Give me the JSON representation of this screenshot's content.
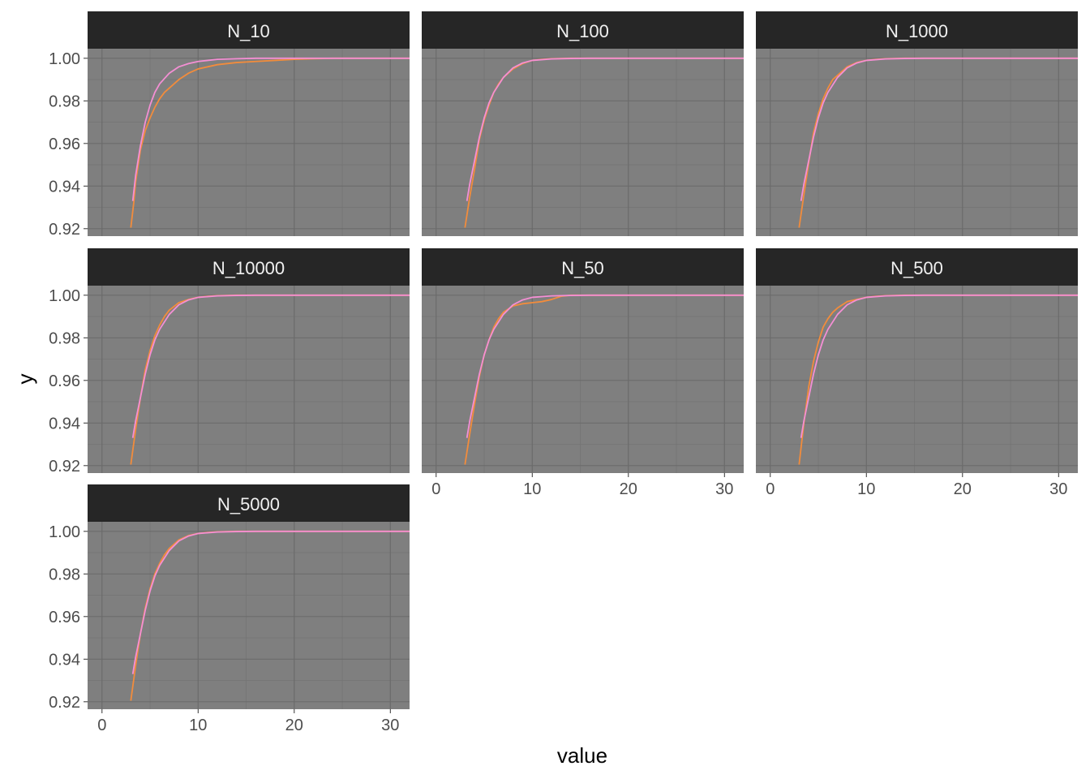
{
  "chart_data": {
    "type": "line",
    "xlabel": "value",
    "ylabel": "y",
    "xlim": [
      -1.5,
      32
    ],
    "ylim": [
      0.9165,
      1.0045
    ],
    "x_ticks": [
      0,
      10,
      20,
      30
    ],
    "y_ticks": [
      0.92,
      0.94,
      0.96,
      0.98,
      1.0
    ],
    "x_tick_labels": [
      "0",
      "10",
      "20",
      "30"
    ],
    "y_tick_labels": [
      "0.92",
      "0.94",
      "0.96",
      "0.98",
      "1.00"
    ],
    "grid": true,
    "colors": {
      "panel_bg": "#7f7f7f",
      "strip_bg": "#262626",
      "grid": "#6b6b6b",
      "series_orange": "#f4a460",
      "series_pink": "#ee82ee"
    },
    "series_colors": [
      "#f28c3c",
      "#f48fd4"
    ],
    "panels": [
      {
        "label": "N_10",
        "series": [
          {
            "color": "#f28c3c",
            "x": [
              3,
              3.3,
              3.5,
              4,
              4.5,
              5,
              5.5,
              6,
              6.5,
              7,
              8,
              9,
              10,
              11,
              12,
              14,
              16,
              18,
              20,
              22,
              24,
              26,
              28,
              30,
              32
            ],
            "y": [
              0.9205,
              0.932,
              0.942,
              0.957,
              0.966,
              0.972,
              0.977,
              0.981,
              0.984,
              0.986,
              0.99,
              0.993,
              0.995,
              0.996,
              0.997,
              0.998,
              0.9985,
              0.999,
              0.9995,
              0.9998,
              1.0,
              1.0,
              1.0,
              1.0,
              1.0
            ]
          },
          {
            "color": "#f48fd4",
            "x": [
              3.2,
              3.5,
              4,
              4.5,
              5,
              5.5,
              6,
              7,
              8,
              9,
              10,
              12,
              14,
              16,
              20,
              25,
              32
            ],
            "y": [
              0.933,
              0.945,
              0.959,
              0.97,
              0.978,
              0.984,
              0.988,
              0.993,
              0.996,
              0.9975,
              0.9985,
              0.9995,
              0.9998,
              1.0,
              1.0,
              1.0,
              1.0
            ]
          }
        ]
      },
      {
        "label": "N_100",
        "series": [
          {
            "color": "#f28c3c",
            "x": [
              3,
              3.5,
              4,
              4.5,
              5,
              5.5,
              6,
              6.5,
              7,
              8,
              9,
              10,
              11,
              12,
              14,
              16,
              20,
              25,
              32
            ],
            "y": [
              0.9205,
              0.935,
              0.948,
              0.962,
              0.971,
              0.978,
              0.984,
              0.988,
              0.991,
              0.995,
              0.9975,
              0.999,
              0.9995,
              0.9998,
              1.0,
              1.0,
              1.0,
              1.0,
              1.0
            ]
          },
          {
            "color": "#f48fd4",
            "x": [
              3.2,
              3.5,
              4,
              4.5,
              5,
              5.5,
              6,
              7,
              8,
              9,
              10,
              12,
              14,
              16,
              20,
              25,
              32
            ],
            "y": [
              0.933,
              0.941,
              0.952,
              0.963,
              0.972,
              0.979,
              0.984,
              0.991,
              0.9955,
              0.9978,
              0.999,
              0.9997,
              0.9999,
              1.0,
              1.0,
              1.0,
              1.0
            ]
          }
        ]
      },
      {
        "label": "N_1000",
        "series": [
          {
            "color": "#f28c3c",
            "x": [
              3,
              3.5,
              4,
              4.5,
              5,
              5.5,
              6,
              6.5,
              7,
              8,
              9,
              10,
              11,
              12,
              14,
              16,
              20,
              25,
              32
            ],
            "y": [
              0.9205,
              0.936,
              0.951,
              0.965,
              0.974,
              0.981,
              0.986,
              0.99,
              0.992,
              0.996,
              0.998,
              0.999,
              0.9995,
              0.9998,
              1.0,
              1.0,
              1.0,
              1.0,
              1.0
            ]
          },
          {
            "color": "#f48fd4",
            "x": [
              3.2,
              3.5,
              4,
              4.5,
              5,
              5.5,
              6,
              7,
              8,
              9,
              10,
              12,
              14,
              16,
              20,
              25,
              32
            ],
            "y": [
              0.933,
              0.941,
              0.952,
              0.963,
              0.972,
              0.979,
              0.984,
              0.991,
              0.9955,
              0.9978,
              0.999,
              0.9997,
              0.9999,
              1.0,
              1.0,
              1.0,
              1.0
            ]
          }
        ]
      },
      {
        "label": "N_10000",
        "series": [
          {
            "color": "#f28c3c",
            "x": [
              3,
              3.5,
              4,
              4.5,
              5,
              5.5,
              6,
              6.5,
              7,
              8,
              9,
              10,
              11,
              12,
              14,
              16,
              20,
              25,
              32
            ],
            "y": [
              0.9205,
              0.937,
              0.952,
              0.965,
              0.974,
              0.981,
              0.986,
              0.99,
              0.993,
              0.9965,
              0.998,
              0.999,
              0.9995,
              0.9998,
              1.0,
              1.0,
              1.0,
              1.0,
              1.0
            ]
          },
          {
            "color": "#f48fd4",
            "x": [
              3.2,
              3.5,
              4,
              4.5,
              5,
              5.5,
              6,
              7,
              8,
              9,
              10,
              12,
              14,
              16,
              20,
              25,
              32
            ],
            "y": [
              0.933,
              0.941,
              0.952,
              0.963,
              0.972,
              0.979,
              0.984,
              0.991,
              0.9955,
              0.9978,
              0.999,
              0.9997,
              0.9999,
              1.0,
              1.0,
              1.0,
              1.0
            ]
          }
        ]
      },
      {
        "label": "N_50",
        "series": [
          {
            "color": "#f28c3c",
            "x": [
              3,
              3.5,
              4,
              4.5,
              5,
              5.5,
              6,
              6.5,
              7,
              8,
              9,
              10,
              11,
              12,
              13,
              14,
              16,
              20,
              25,
              32
            ],
            "y": [
              0.9205,
              0.935,
              0.949,
              0.962,
              0.972,
              0.979,
              0.985,
              0.989,
              0.992,
              0.995,
              0.996,
              0.9965,
              0.997,
              0.998,
              0.9995,
              1.0,
              1.0,
              1.0,
              1.0,
              1.0
            ]
          },
          {
            "color": "#f48fd4",
            "x": [
              3.2,
              3.5,
              4,
              4.5,
              5,
              5.5,
              6,
              7,
              8,
              9,
              10,
              12,
              14,
              16,
              20,
              25,
              32
            ],
            "y": [
              0.933,
              0.941,
              0.952,
              0.963,
              0.972,
              0.979,
              0.984,
              0.991,
              0.9955,
              0.9978,
              0.999,
              0.9997,
              0.9999,
              1.0,
              1.0,
              1.0,
              1.0
            ]
          }
        ]
      },
      {
        "label": "N_500",
        "series": [
          {
            "color": "#f28c3c",
            "x": [
              3,
              3.5,
              4,
              4.5,
              5,
              5.5,
              6,
              6.5,
              7,
              8,
              9,
              10,
              11,
              12,
              14,
              16,
              20,
              25,
              32
            ],
            "y": [
              0.9205,
              0.94,
              0.957,
              0.969,
              0.978,
              0.985,
              0.989,
              0.992,
              0.994,
              0.997,
              0.998,
              0.999,
              0.9995,
              0.9998,
              1.0,
              1.0,
              1.0,
              1.0,
              1.0
            ]
          },
          {
            "color": "#f48fd4",
            "x": [
              3.2,
              3.5,
              4,
              4.5,
              5,
              5.5,
              6,
              7,
              8,
              9,
              10,
              12,
              14,
              16,
              20,
              25,
              32
            ],
            "y": [
              0.933,
              0.941,
              0.952,
              0.963,
              0.972,
              0.979,
              0.984,
              0.991,
              0.9955,
              0.9978,
              0.999,
              0.9997,
              0.9999,
              1.0,
              1.0,
              1.0,
              1.0
            ]
          }
        ]
      },
      {
        "label": "N_5000",
        "series": [
          {
            "color": "#f28c3c",
            "x": [
              3,
              3.5,
              4,
              4.5,
              5,
              5.5,
              6,
              6.5,
              7,
              8,
              9,
              10,
              11,
              12,
              14,
              16,
              20,
              25,
              32
            ],
            "y": [
              0.9205,
              0.937,
              0.952,
              0.964,
              0.973,
              0.98,
              0.985,
              0.989,
              0.992,
              0.996,
              0.998,
              0.999,
              0.9995,
              0.9998,
              1.0,
              1.0,
              1.0,
              1.0,
              1.0
            ]
          },
          {
            "color": "#f48fd4",
            "x": [
              3.2,
              3.5,
              4,
              4.5,
              5,
              5.5,
              6,
              7,
              8,
              9,
              10,
              12,
              14,
              16,
              20,
              25,
              32
            ],
            "y": [
              0.933,
              0.941,
              0.952,
              0.963,
              0.972,
              0.979,
              0.984,
              0.991,
              0.9955,
              0.9978,
              0.999,
              0.9997,
              0.9999,
              1.0,
              1.0,
              1.0,
              1.0
            ]
          }
        ]
      }
    ]
  }
}
